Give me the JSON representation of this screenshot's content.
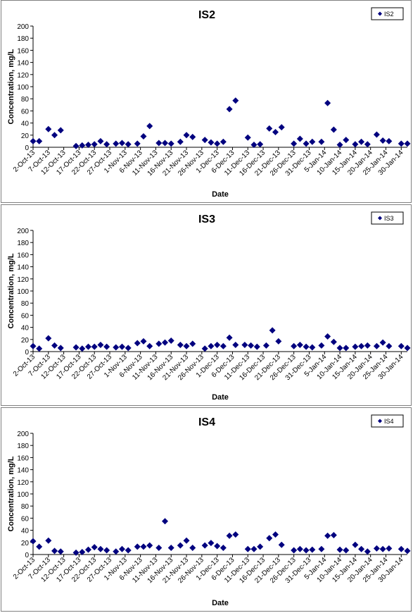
{
  "charts_meta": {
    "x_tick_labels": [
      "2-Oct-13",
      "7-Oct-13",
      "12-Oct-13",
      "17-Oct-13",
      "22-Oct-13",
      "27-Oct-13",
      "1-Nov-13",
      "6-Nov-13",
      "11-Nov-13",
      "16-Nov-13",
      "21-Nov-13",
      "26-Nov-13",
      "1-Dec-13",
      "6-Dec-13",
      "11-Dec-13",
      "16-Dec-13",
      "21-Dec-13",
      "26-Dec-13",
      "31-Dec-13",
      "5-Jan-14",
      "10-Jan-14",
      "15-Jan-14",
      "20-Jan-14",
      "25-Jan-14",
      "30-Jan-14"
    ]
  },
  "chart_data": [
    {
      "type": "scatter",
      "title": "IS2",
      "xlabel": "Date",
      "ylabel": "Concentration, mg/L",
      "ylim": [
        0,
        200
      ],
      "yticks": [
        0,
        20,
        40,
        60,
        80,
        100,
        120,
        140,
        160,
        180,
        200
      ],
      "xlim": [
        "2-Oct-13",
        "1-Feb-14"
      ],
      "legend": "top-right",
      "grid": false,
      "marker_color": "#00007f",
      "series": [
        {
          "name": "IS2",
          "points": [
            [
              "2-Oct-13",
              10
            ],
            [
              "4-Oct-13",
              10
            ],
            [
              "7-Oct-13",
              30
            ],
            [
              "9-Oct-13",
              20
            ],
            [
              "11-Oct-13",
              28
            ],
            [
              "16-Oct-13",
              2
            ],
            [
              "18-Oct-13",
              3
            ],
            [
              "20-Oct-13",
              4
            ],
            [
              "22-Oct-13",
              5
            ],
            [
              "24-Oct-13",
              10
            ],
            [
              "26-Oct-13",
              5
            ],
            [
              "29-Oct-13",
              6
            ],
            [
              "31-Oct-13",
              7
            ],
            [
              "2-Nov-13",
              5
            ],
            [
              "5-Nov-13",
              6
            ],
            [
              "7-Nov-13",
              18
            ],
            [
              "9-Nov-13",
              35
            ],
            [
              "12-Nov-13",
              7
            ],
            [
              "14-Nov-13",
              7
            ],
            [
              "16-Nov-13",
              6
            ],
            [
              "19-Nov-13",
              9
            ],
            [
              "21-Nov-13",
              20
            ],
            [
              "23-Nov-13",
              17
            ],
            [
              "27-Nov-13",
              12
            ],
            [
              "29-Nov-13",
              8
            ],
            [
              "1-Dec-13",
              6
            ],
            [
              "3-Dec-13",
              9
            ],
            [
              "5-Dec-13",
              63
            ],
            [
              "7-Dec-13",
              77
            ],
            [
              "11-Dec-13",
              16
            ],
            [
              "13-Dec-13",
              4
            ],
            [
              "15-Dec-13",
              5
            ],
            [
              "18-Dec-13",
              31
            ],
            [
              "20-Dec-13",
              25
            ],
            [
              "22-Dec-13",
              33
            ],
            [
              "26-Dec-13",
              6
            ],
            [
              "28-Dec-13",
              14
            ],
            [
              "30-Dec-13",
              6
            ],
            [
              "1-Jan-14",
              9
            ],
            [
              "4-Jan-14",
              9
            ],
            [
              "6-Jan-14",
              73
            ],
            [
              "8-Jan-14",
              29
            ],
            [
              "10-Jan-14",
              4
            ],
            [
              "12-Jan-14",
              12
            ],
            [
              "15-Jan-14",
              5
            ],
            [
              "17-Jan-14",
              9
            ],
            [
              "19-Jan-14",
              5
            ],
            [
              "22-Jan-14",
              21
            ],
            [
              "24-Jan-14",
              11
            ],
            [
              "26-Jan-14",
              10
            ],
            [
              "30-Jan-14",
              6
            ],
            [
              "1-Feb-14",
              6
            ]
          ]
        }
      ]
    },
    {
      "type": "scatter",
      "title": "IS3",
      "xlabel": "Date",
      "ylabel": "Concentration, mg/L",
      "ylim": [
        0,
        200
      ],
      "yticks": [
        0,
        20,
        40,
        60,
        80,
        100,
        120,
        140,
        160,
        180,
        200
      ],
      "xlim": [
        "2-Oct-13",
        "1-Feb-14"
      ],
      "legend": "top-right",
      "grid": false,
      "marker_color": "#00007f",
      "series": [
        {
          "name": "IS3",
          "points": [
            [
              "2-Oct-13",
              9
            ],
            [
              "4-Oct-13",
              5
            ],
            [
              "7-Oct-13",
              22
            ],
            [
              "9-Oct-13",
              10
            ],
            [
              "11-Oct-13",
              6
            ],
            [
              "16-Oct-13",
              7
            ],
            [
              "18-Oct-13",
              5
            ],
            [
              "20-Oct-13",
              8
            ],
            [
              "22-Oct-13",
              8
            ],
            [
              "24-Oct-13",
              11
            ],
            [
              "26-Oct-13",
              8
            ],
            [
              "29-Oct-13",
              7
            ],
            [
              "31-Oct-13",
              8
            ],
            [
              "2-Nov-13",
              6
            ],
            [
              "5-Nov-13",
              14
            ],
            [
              "7-Nov-13",
              17
            ],
            [
              "9-Nov-13",
              9
            ],
            [
              "12-Nov-13",
              13
            ],
            [
              "14-Nov-13",
              15
            ],
            [
              "16-Nov-13",
              18
            ],
            [
              "19-Nov-13",
              11
            ],
            [
              "21-Nov-13",
              9
            ],
            [
              "23-Nov-13",
              13
            ],
            [
              "27-Nov-13",
              5
            ],
            [
              "29-Nov-13",
              9
            ],
            [
              "1-Dec-13",
              11
            ],
            [
              "3-Dec-13",
              9
            ],
            [
              "5-Dec-13",
              23
            ],
            [
              "7-Dec-13",
              11
            ],
            [
              "10-Dec-13",
              11
            ],
            [
              "12-Dec-13",
              10
            ],
            [
              "14-Dec-13",
              8
            ],
            [
              "17-Dec-13",
              10
            ],
            [
              "19-Dec-13",
              35
            ],
            [
              "21-Dec-13",
              17
            ],
            [
              "26-Dec-13",
              9
            ],
            [
              "28-Dec-13",
              11
            ],
            [
              "30-Dec-13",
              8
            ],
            [
              "1-Jan-14",
              7
            ],
            [
              "4-Jan-14",
              10
            ],
            [
              "6-Jan-14",
              25
            ],
            [
              "8-Jan-14",
              16
            ],
            [
              "10-Jan-14",
              6
            ],
            [
              "12-Jan-14",
              6
            ],
            [
              "15-Jan-14",
              8
            ],
            [
              "17-Jan-14",
              9
            ],
            [
              "19-Jan-14",
              10
            ],
            [
              "22-Jan-14",
              9
            ],
            [
              "24-Jan-14",
              15
            ],
            [
              "26-Jan-14",
              9
            ],
            [
              "30-Jan-14",
              9
            ],
            [
              "1-Feb-14",
              6
            ]
          ]
        }
      ]
    },
    {
      "type": "scatter",
      "title": "IS4",
      "xlabel": "Date",
      "ylabel": "Concentration, mg/L",
      "ylim": [
        0,
        200
      ],
      "yticks": [
        0,
        20,
        40,
        60,
        80,
        100,
        120,
        140,
        160,
        180,
        200
      ],
      "xlim": [
        "2-Oct-13",
        "1-Feb-14"
      ],
      "legend": "top-right",
      "grid": false,
      "marker_color": "#00007f",
      "series": [
        {
          "name": "IS4",
          "points": [
            [
              "2-Oct-13",
              22
            ],
            [
              "4-Oct-13",
              13
            ],
            [
              "7-Oct-13",
              23
            ],
            [
              "9-Oct-13",
              6
            ],
            [
              "11-Oct-13",
              5
            ],
            [
              "16-Oct-13",
              3
            ],
            [
              "18-Oct-13",
              4
            ],
            [
              "20-Oct-13",
              8
            ],
            [
              "22-Oct-13",
              12
            ],
            [
              "24-Oct-13",
              9
            ],
            [
              "26-Oct-13",
              7
            ],
            [
              "29-Oct-13",
              5
            ],
            [
              "31-Oct-13",
              9
            ],
            [
              "2-Nov-13",
              7
            ],
            [
              "5-Nov-13",
              13
            ],
            [
              "7-Nov-13",
              13
            ],
            [
              "9-Nov-13",
              15
            ],
            [
              "12-Nov-13",
              11
            ],
            [
              "14-Nov-13",
              55
            ],
            [
              "16-Nov-13",
              11
            ],
            [
              "19-Nov-13",
              15
            ],
            [
              "21-Nov-13",
              23
            ],
            [
              "23-Nov-13",
              11
            ],
            [
              "27-Nov-13",
              15
            ],
            [
              "29-Nov-13",
              19
            ],
            [
              "1-Dec-13",
              14
            ],
            [
              "3-Dec-13",
              11
            ],
            [
              "5-Dec-13",
              31
            ],
            [
              "7-Dec-13",
              33
            ],
            [
              "11-Dec-13",
              9
            ],
            [
              "13-Dec-13",
              9
            ],
            [
              "15-Dec-13",
              13
            ],
            [
              "18-Dec-13",
              27
            ],
            [
              "20-Dec-13",
              33
            ],
            [
              "22-Dec-13",
              16
            ],
            [
              "26-Dec-13",
              7
            ],
            [
              "28-Dec-13",
              9
            ],
            [
              "30-Dec-13",
              7
            ],
            [
              "1-Jan-14",
              8
            ],
            [
              "4-Jan-14",
              9
            ],
            [
              "6-Jan-14",
              31
            ],
            [
              "8-Jan-14",
              32
            ],
            [
              "10-Jan-14",
              8
            ],
            [
              "12-Jan-14",
              7
            ],
            [
              "15-Jan-14",
              16
            ],
            [
              "17-Jan-14",
              9
            ],
            [
              "19-Jan-14",
              5
            ],
            [
              "22-Jan-14",
              10
            ],
            [
              "24-Jan-14",
              9
            ],
            [
              "26-Jan-14",
              10
            ],
            [
              "30-Jan-14",
              9
            ],
            [
              "1-Feb-14",
              6
            ]
          ]
        }
      ]
    }
  ]
}
